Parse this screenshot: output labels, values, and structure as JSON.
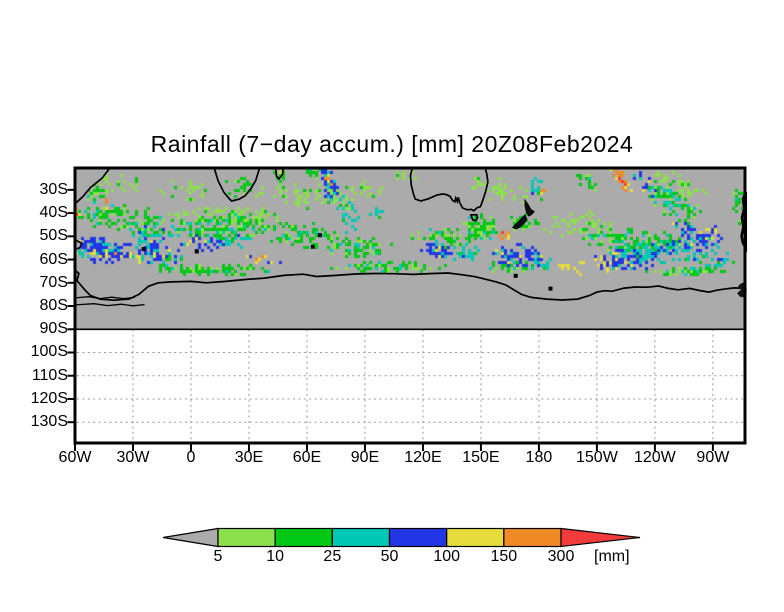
{
  "chart_data": {
    "type": "heatmap",
    "title": "Rainfall (7−day accum.) [mm] 20Z08Feb2024",
    "x_axis": {
      "tick_labels": [
        "60W",
        "30W",
        "0",
        "30E",
        "60E",
        "90E",
        "120E",
        "150E",
        "180",
        "150W",
        "120W",
        "90W"
      ],
      "tick_lons_east_of_greenwich": [
        -60,
        -30,
        0,
        30,
        60,
        90,
        120,
        150,
        180,
        210,
        240,
        270
      ]
    },
    "y_axis": {
      "tick_labels": [
        "30S",
        "40S",
        "50S",
        "60S",
        "70S",
        "80S",
        "90S",
        "100S",
        "110S",
        "120S",
        "130S"
      ],
      "tick_lats_south": [
        30,
        40,
        50,
        60,
        70,
        80,
        90,
        100,
        110,
        120,
        130
      ]
    },
    "colorbar": {
      "levels": [
        "5",
        "10",
        "25",
        "50",
        "100",
        "150",
        "300"
      ],
      "unit": "[mm]",
      "segment_colors": [
        "#8CE04B",
        "#00C814",
        "#00C8B4",
        "#2336E6",
        "#E6DC3C",
        "#EF8A26"
      ],
      "below_color": "#ABABAB",
      "above_color": "#F23C3C"
    },
    "palette": [
      "#8CE04B",
      "#00C814",
      "#00C8B4",
      "#2336E6",
      "#E6DC3C",
      "#EF8A26",
      "#F23C3C"
    ],
    "land_color": "#ABABAB",
    "grid_color": "#9a9a9a",
    "field_blobs": [
      [
        -40,
        26,
        16,
        5,
        0.1,
        0,
        0.5
      ],
      [
        -5,
        31,
        14,
        6,
        0,
        0,
        0.42
      ],
      [
        60,
        33,
        28,
        6,
        0.08,
        0,
        0.45
      ],
      [
        90,
        29,
        12,
        4,
        0.1,
        0,
        0.38
      ],
      [
        160,
        30,
        16,
        6,
        0.25,
        0,
        0.45
      ],
      [
        252,
        28,
        18,
        6,
        0.25,
        0,
        0.4
      ],
      [
        110,
        24,
        7,
        3,
        0,
        0,
        0.4
      ],
      [
        20,
        41,
        30,
        4,
        0,
        0,
        0.5
      ],
      [
        200,
        45,
        20,
        6,
        0,
        0,
        0.4
      ],
      [
        -53,
        24,
        7,
        4,
        0.3,
        1,
        0.6
      ],
      [
        -52,
        30,
        9,
        5,
        0.3,
        1,
        0.65
      ],
      [
        -30,
        43,
        30,
        6,
        0.08,
        1,
        0.62
      ],
      [
        20,
        46,
        26,
        6,
        -0.05,
        1,
        0.65
      ],
      [
        60,
        50,
        24,
        6,
        0.08,
        1,
        0.6
      ],
      [
        88,
        55,
        18,
        5,
        0,
        1,
        0.65
      ],
      [
        135,
        50,
        22,
        4,
        0,
        1,
        0.6
      ],
      [
        150,
        46,
        11,
        6,
        0,
        1,
        0.65
      ],
      [
        25,
        29,
        8,
        5,
        0,
        1,
        0.5
      ],
      [
        46,
        24,
        4,
        3,
        0,
        1,
        0.6
      ],
      [
        62,
        23,
        8,
        3,
        0,
        1,
        0.5
      ],
      [
        10,
        64.5,
        33,
        2.5,
        0,
        1,
        0.72
      ],
      [
        105,
        63,
        35,
        2.5,
        0,
        1,
        0.62
      ],
      [
        255,
        65,
        22,
        2.5,
        0,
        1,
        0.68
      ],
      [
        205,
        26,
        8,
        4,
        0.5,
        1,
        0.6
      ],
      [
        250,
        36,
        15,
        7,
        0.35,
        1,
        0.55
      ],
      [
        283,
        36,
        4,
        9,
        0,
        1,
        0.55
      ],
      [
        172,
        45,
        8,
        5,
        0,
        1,
        0.6
      ],
      [
        228,
        52,
        28,
        5,
        0,
        1,
        0.6
      ],
      [
        165,
        63,
        14,
        3,
        0,
        1,
        0.6
      ],
      [
        -20,
        49,
        16,
        5,
        0.1,
        2,
        0.55
      ],
      [
        22,
        52,
        10,
        4,
        0,
        2,
        0.55
      ],
      [
        -12,
        60,
        10,
        3,
        0,
        2,
        0.5
      ],
      [
        80,
        41,
        9,
        8,
        0.5,
        2,
        0.45
      ],
      [
        95,
        40,
        6,
        3,
        0,
        2,
        0.6
      ],
      [
        178,
        29,
        6,
        5,
        0.4,
        2,
        0.5
      ],
      [
        245,
        33,
        10,
        5,
        0.5,
        2,
        0.5
      ],
      [
        240,
        56,
        24,
        6,
        0,
        2,
        0.6
      ],
      [
        180,
        62,
        10,
        3,
        0,
        2,
        0.55
      ],
      [
        140,
        57,
        10,
        4,
        0,
        2,
        0.5
      ],
      [
        270,
        60,
        14,
        4,
        0,
        2,
        0.55
      ],
      [
        -45,
        56,
        17,
        6,
        0.05,
        3,
        0.82
      ],
      [
        -20,
        57,
        13,
        5,
        0,
        3,
        0.75
      ],
      [
        5,
        53,
        11,
        4,
        0,
        3,
        0.6
      ],
      [
        72,
        28,
        6,
        7,
        0.5,
        3,
        0.7
      ],
      [
        128,
        56,
        9,
        4,
        0,
        3,
        0.8
      ],
      [
        168,
        58,
        14,
        5,
        0,
        3,
        0.75
      ],
      [
        225,
        60,
        17,
        5,
        0,
        3,
        0.8
      ],
      [
        265,
        52,
        13,
        5,
        0,
        3,
        0.75
      ],
      [
        235,
        27,
        8,
        5,
        0.6,
        3,
        0.55
      ],
      [
        70,
        22,
        4,
        2,
        0,
        3,
        0.5
      ],
      [
        255,
        46,
        6,
        3,
        0.3,
        3,
        0.5
      ],
      [
        -45,
        57,
        9,
        2.5,
        0.1,
        4,
        0.5
      ],
      [
        -28,
        58,
        6,
        2,
        0,
        4,
        0.45
      ],
      [
        37,
        60,
        11,
        2.5,
        0.05,
        4,
        0.42
      ],
      [
        128,
        55,
        3,
        1.5,
        0,
        4,
        0.45
      ],
      [
        212,
        62,
        11,
        3,
        0.15,
        4,
        0.5
      ],
      [
        196,
        64,
        9,
        2.5,
        0.3,
        4,
        0.45
      ],
      [
        270,
        47,
        4,
        2.5,
        0,
        4,
        0.5
      ],
      [
        46,
        23,
        1.2,
        1,
        0,
        4,
        0.8
      ],
      [
        -8,
        57,
        3,
        1.5,
        0,
        4,
        0.4
      ],
      [
        -45,
        35,
        5,
        3,
        0.4,
        5,
        0.3
      ],
      [
        -59,
        39.5,
        2.5,
        2.5,
        0,
        5,
        0.55
      ],
      [
        71,
        26,
        3,
        4,
        0.5,
        5,
        0.6
      ],
      [
        222,
        25,
        6,
        4,
        0.8,
        5,
        0.75
      ],
      [
        163,
        50,
        4,
        2,
        0,
        5,
        0.5
      ],
      [
        286,
        47,
        2,
        2.5,
        0,
        5,
        0.55
      ],
      [
        -50,
        57,
        4,
        1.5,
        0,
        5,
        0.35
      ],
      [
        -53,
        23,
        2,
        1.5,
        0,
        5,
        0.4
      ],
      [
        182,
        30,
        2.5,
        2.5,
        0,
        5,
        0.5
      ],
      [
        -59.5,
        43,
        1.5,
        1.5,
        0,
        6,
        0.7
      ],
      [
        224,
        27,
        2.5,
        2,
        0.6,
        6,
        0.45
      ]
    ],
    "coastlines": {
      "antarctica": [
        [
          -60,
          64.5
        ],
        [
          -58,
          66
        ],
        [
          -59,
          69
        ],
        [
          -57,
          71
        ],
        [
          -55,
          73
        ],
        [
          -52,
          75.5
        ],
        [
          -47,
          77
        ],
        [
          -40,
          77.5
        ],
        [
          -32,
          77
        ],
        [
          -27,
          75
        ],
        [
          -22,
          71.5
        ],
        [
          -17,
          70
        ],
        [
          -10,
          69.6
        ],
        [
          0,
          69.4
        ],
        [
          8,
          70
        ],
        [
          18,
          69.4
        ],
        [
          28,
          68.6
        ],
        [
          38,
          68
        ],
        [
          48,
          66.8
        ],
        [
          58,
          66.3
        ],
        [
          65,
          67.3
        ],
        [
          75,
          66.8
        ],
        [
          85,
          66.2
        ],
        [
          95,
          66
        ],
        [
          105,
          66.1
        ],
        [
          115,
          66.4
        ],
        [
          125,
          66
        ],
        [
          133,
          65.8
        ],
        [
          140,
          66.5
        ],
        [
          147,
          67.4
        ],
        [
          152,
          68.4
        ],
        [
          158,
          69.6
        ],
        [
          163,
          71
        ],
        [
          167,
          73
        ],
        [
          171,
          75
        ],
        [
          176,
          76.3
        ],
        [
          184,
          77
        ],
        [
          192,
          77.4
        ],
        [
          200,
          77
        ],
        [
          206,
          75.5
        ],
        [
          210,
          74
        ],
        [
          214,
          73.4
        ],
        [
          218,
          73.6
        ],
        [
          224,
          72.3
        ],
        [
          230,
          71.8
        ],
        [
          236,
          71.9
        ],
        [
          242,
          71.4
        ],
        [
          247,
          72.4
        ],
        [
          252,
          73
        ],
        [
          258,
          72.4
        ],
        [
          263,
          73.3
        ],
        [
          268,
          74
        ],
        [
          272,
          73.2
        ],
        [
          277,
          72.6
        ],
        [
          281,
          72.2
        ],
        [
          287,
          72.4
        ]
      ],
      "ice_shelf_lines": [
        [
          [
            -60,
            76.5
          ],
          [
            -53,
            76
          ],
          [
            -47,
            76.8
          ],
          [
            -41,
            76.2
          ],
          [
            -35,
            76.8
          ],
          [
            -29,
            76.3
          ]
        ],
        [
          [
            -60,
            79.5
          ],
          [
            -50,
            79
          ],
          [
            -43,
            79.8
          ],
          [
            -36,
            79.2
          ],
          [
            -30,
            79.9
          ],
          [
            -24,
            79.4
          ]
        ]
      ],
      "south_america": [
        [
          -42,
          20.6
        ],
        [
          -46,
          25
        ],
        [
          -52,
          29
        ],
        [
          -56,
          33
        ],
        [
          -60,
          36
        ],
        [
          -60,
          20.6
        ]
      ],
      "tierra_del_fuego": [
        [
          -60,
          51.5
        ],
        [
          -56.5,
          53
        ],
        [
          -57.5,
          55
        ],
        [
          -60,
          55.5
        ]
      ],
      "africa": [
        [
          12,
          20.6
        ],
        [
          14,
          26
        ],
        [
          17,
          31
        ],
        [
          19.5,
          33.5
        ],
        [
          21,
          34.8
        ],
        [
          25,
          34
        ],
        [
          28,
          32.5
        ],
        [
          31,
          29.5
        ],
        [
          33.5,
          26
        ],
        [
          35,
          22
        ],
        [
          35.5,
          20.6
        ]
      ],
      "madagascar": [
        [
          43.8,
          20.6
        ],
        [
          44.2,
          24
        ],
        [
          45.5,
          25.3
        ],
        [
          47.3,
          23.5
        ],
        [
          47.8,
          20.6
        ]
      ],
      "australia": [
        [
          114.5,
          20.6
        ],
        [
          113.5,
          24
        ],
        [
          114,
          28
        ],
        [
          115,
          31.5
        ],
        [
          116,
          34
        ],
        [
          119,
          34.8
        ],
        [
          123,
          33.8
        ],
        [
          127,
          32.3
        ],
        [
          130,
          31.8
        ],
        [
          132,
          32
        ],
        [
          134,
          32.8
        ],
        [
          135.3,
          34.5
        ],
        [
          136.5,
          35.2
        ],
        [
          137,
          33.5
        ],
        [
          137.8,
          35
        ],
        [
          138.3,
          33.2
        ],
        [
          139,
          35.5
        ],
        [
          140.5,
          37.8
        ],
        [
          143,
          38.6
        ],
        [
          145,
          38.4
        ],
        [
          146.3,
          39
        ],
        [
          148,
          37.7
        ],
        [
          149.8,
          37.2
        ],
        [
          151.2,
          34
        ],
        [
          152.5,
          30.5
        ],
        [
          153.6,
          26.5
        ],
        [
          153,
          23
        ],
        [
          152.2,
          20.6
        ]
      ],
      "tasmania": [
        [
          144.8,
          40.8
        ],
        [
          145.8,
          43
        ],
        [
          147.3,
          43.3
        ],
        [
          148.3,
          42
        ],
        [
          147.8,
          40.7
        ]
      ],
      "new_zealand_north": [
        [
          172.8,
          34.4
        ],
        [
          174.5,
          36.5
        ],
        [
          175.8,
          38.5
        ],
        [
          177.5,
          39.3
        ],
        [
          176.3,
          40.5
        ],
        [
          174.8,
          41.3
        ],
        [
          173.5,
          39.5
        ],
        [
          172.8,
          36.8
        ]
      ],
      "new_zealand_south": [
        [
          172.8,
          40.8
        ],
        [
          173.8,
          42.8
        ],
        [
          172.5,
          44.2
        ],
        [
          170.5,
          45.8
        ],
        [
          168.3,
          46.8
        ],
        [
          166.5,
          46.2
        ],
        [
          168,
          44.8
        ],
        [
          170,
          43.3
        ],
        [
          171.5,
          41.8
        ]
      ],
      "chile_edge": [
        [
          287,
          31
        ],
        [
          285.5,
          34
        ],
        [
          286.2,
          38
        ],
        [
          285,
          42
        ],
        [
          285.8,
          46
        ],
        [
          284.8,
          50
        ],
        [
          285.6,
          53
        ],
        [
          287,
          55
        ]
      ],
      "peninsula_right": [
        [
          287,
          69.5
        ],
        [
          284.5,
          70.3
        ],
        [
          283,
          71.5
        ],
        [
          284.5,
          73
        ],
        [
          282.5,
          74.5
        ],
        [
          284,
          76
        ],
        [
          287,
          76.5
        ]
      ],
      "islands": [
        [
          -24.5,
          55.5
        ],
        [
          3,
          56.5
        ],
        [
          63,
          54.5
        ],
        [
          66.7,
          49.5
        ],
        [
          168,
          67
        ],
        [
          186,
          72.5
        ]
      ]
    }
  }
}
